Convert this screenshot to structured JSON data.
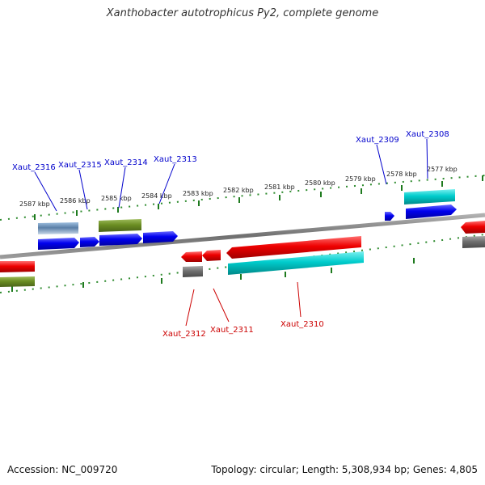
{
  "title": "Xanthobacter autotrophicus Py2, complete genome",
  "footer": {
    "accession": "Accession: NC_009720",
    "summary": "Topology: circular; Length: 5,308,934 bp; Genes: 4,805"
  },
  "scale_labels": [
    "2587 kbp",
    "2586 kbp",
    "2585 kbp",
    "2584 kbp",
    "2583 kbp",
    "2582 kbp",
    "2581 kbp",
    "2580 kbp",
    "2579 kbp",
    "2578 kbp",
    "2577 kbp"
  ],
  "gene_labels": [
    {
      "name": "Xaut_2316",
      "strand": "forward"
    },
    {
      "name": "Xaut_2315",
      "strand": "forward"
    },
    {
      "name": "Xaut_2314",
      "strand": "forward"
    },
    {
      "name": "Xaut_2313",
      "strand": "forward"
    },
    {
      "name": "Xaut_2309",
      "strand": "forward"
    },
    {
      "name": "Xaut_2308",
      "strand": "forward"
    },
    {
      "name": "Xaut_2312",
      "strand": "reverse"
    },
    {
      "name": "Xaut_2311",
      "strand": "reverse"
    },
    {
      "name": "Xaut_2310",
      "strand": "reverse"
    }
  ],
  "colors": {
    "forward_label": "#0000cc",
    "reverse_label": "#cc0000",
    "backbone": "#808080",
    "ticks": "#228B22",
    "cds_forward": "#0000ee",
    "cds_reverse": "#ee0000",
    "orf": "#00cccc",
    "other": "#6b8e23",
    "gray": "#707070",
    "steel": "#5a7fa8"
  }
}
